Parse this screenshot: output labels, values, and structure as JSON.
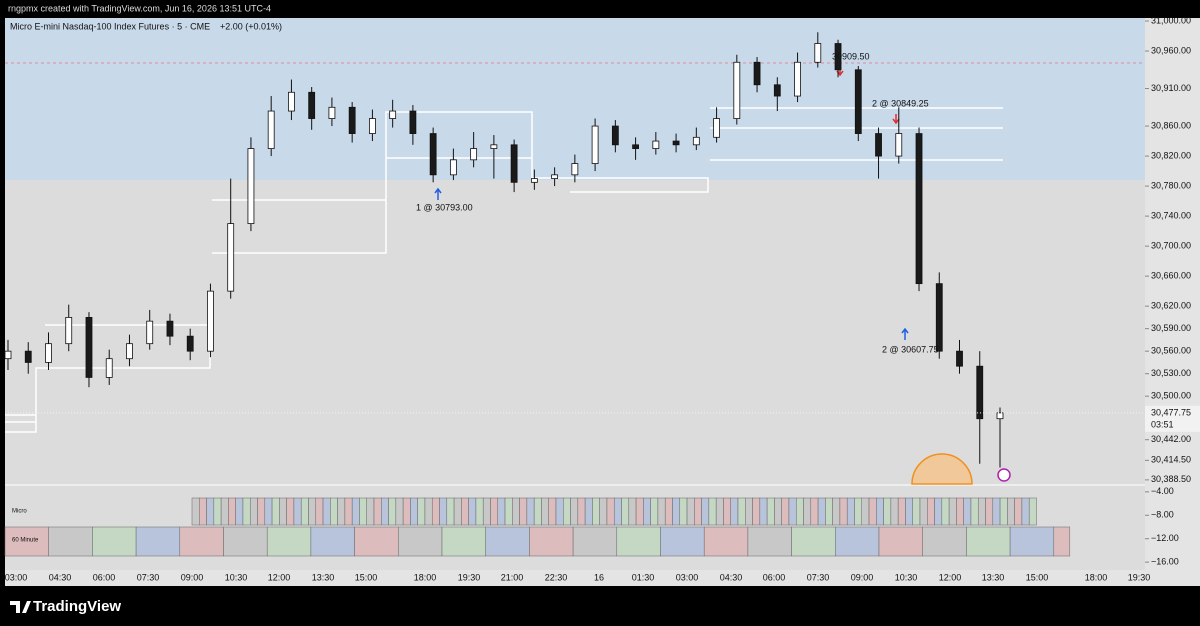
{
  "header": {
    "author_line": "rngpmx created with TradingView.com, Jun 16, 2026 13:51 UTC-4"
  },
  "chart_data": [
    {
      "type": "candlestick",
      "title": "Micro E-mini Nasdaq-100 Index Futures · 5 · CME",
      "change": "+2.00 (+0.01%)",
      "up_color": "#ffffff",
      "down_color": "#1a1a1a",
      "open": [
        30550,
        30560,
        30545,
        30570,
        30605,
        30525,
        30550,
        30570,
        30600,
        30580,
        30560,
        30640,
        30730,
        30830,
        30880,
        30905,
        30870,
        30885,
        30850,
        30870,
        30880,
        30850,
        30795,
        30815,
        30830,
        30835,
        30785,
        30790,
        30795,
        30810,
        30860,
        30835,
        30830,
        30840,
        30835,
        30845,
        30870,
        30945,
        30915,
        30900,
        30945,
        30970,
        30935,
        30850,
        30820,
        30850,
        30650,
        30560,
        30540,
        30470
      ],
      "high": [
        30575,
        30572,
        30585,
        30622,
        30612,
        30562,
        30582,
        30615,
        30610,
        30590,
        30650,
        30790,
        30845,
        30900,
        30922,
        30912,
        30898,
        30892,
        30882,
        30895,
        30888,
        30858,
        30830,
        30852,
        30848,
        30842,
        30802,
        30805,
        30822,
        30870,
        30868,
        30845,
        30852,
        30850,
        30858,
        30885,
        30955,
        30952,
        30925,
        30958,
        30985,
        30975,
        30940,
        30858,
        30885,
        30858,
        30665,
        30575,
        30560,
        30485
      ],
      "low": [
        30535,
        30530,
        30535,
        30560,
        30512,
        30515,
        30540,
        30562,
        30568,
        30548,
        30552,
        30630,
        30720,
        30820,
        30868,
        30855,
        30860,
        30838,
        30840,
        30858,
        30835,
        30785,
        30788,
        30805,
        30790,
        30772,
        30775,
        30780,
        30785,
        30800,
        30825,
        30815,
        30822,
        30825,
        30828,
        30838,
        30862,
        30905,
        30880,
        30892,
        30938,
        30925,
        30840,
        30790,
        30810,
        30640,
        30550,
        30530,
        30410,
        30405
      ],
      "close": [
        30560,
        30545,
        30570,
        30605,
        30525,
        30550,
        30570,
        30600,
        30580,
        30560,
        30640,
        30730,
        30830,
        30880,
        30905,
        30870,
        30885,
        30850,
        30870,
        30880,
        30850,
        30795,
        30815,
        30830,
        30835,
        30785,
        30790,
        30795,
        30810,
        30860,
        30835,
        30830,
        30840,
        30835,
        30845,
        30870,
        30945,
        30915,
        30900,
        30945,
        30970,
        30935,
        30850,
        30820,
        30850,
        30650,
        30560,
        30540,
        30470,
        30477.75
      ],
      "ylim": [
        30383,
        31004
      ],
      "yticks": [
        {
          "value": 31000,
          "label": "31,000.00"
        },
        {
          "value": 30960,
          "label": "30,960.00"
        },
        {
          "value": 30910,
          "label": "30,910.00"
        },
        {
          "value": 30860,
          "label": "30,860.00"
        },
        {
          "value": 30820,
          "label": "30,820.00"
        },
        {
          "value": 30780,
          "label": "30,780.00"
        },
        {
          "value": 30740,
          "label": "30,740.00"
        },
        {
          "value": 30700,
          "label": "30,700.00"
        },
        {
          "value": 30660,
          "label": "30,660.00"
        },
        {
          "value": 30620,
          "label": "30,620.00"
        },
        {
          "value": 30590,
          "label": "30,590.00"
        },
        {
          "value": 30560,
          "label": "30,560.00"
        },
        {
          "value": 30530,
          "label": "30,530.00"
        },
        {
          "value": 30500,
          "label": "30,500.00"
        },
        {
          "value": 30442,
          "label": "30,442.00"
        },
        {
          "value": 30414.5,
          "label": "30,414.50"
        },
        {
          "value": 30388.5,
          "label": "30,388.50"
        }
      ],
      "last_price": {
        "value": 30477.75,
        "label": "30,477.75"
      },
      "countdown": "03:51",
      "annotations": [
        "1 @ 30793.00",
        "30909.50",
        "2 @ 30849.25",
        "2 @ 30607.75"
      ],
      "time_labels": [
        "03:00",
        "04:30",
        "06:00",
        "07:30",
        "09:00",
        "10:30",
        "12:00",
        "13:30",
        "15:00",
        "18:00",
        "19:30",
        "21:00",
        "22:30",
        "16",
        "01:30",
        "03:00",
        "04:30",
        "06:00",
        "07:30",
        "09:00",
        "10:30",
        "12:00",
        "13:30",
        "15:00",
        "18:00",
        "19:30"
      ]
    },
    {
      "type": "indicator",
      "rows": [
        "Micro",
        "60 Minute"
      ],
      "ylim": [
        -17,
        -3
      ],
      "yticks": [
        {
          "value": -4,
          "label": "−4.00"
        },
        {
          "value": -8,
          "label": "−8.00"
        },
        {
          "value": -12,
          "label": "−12.00"
        },
        {
          "value": -16,
          "label": "−16.00"
        }
      ]
    }
  ],
  "footer": {
    "logo": "TradingView"
  }
}
